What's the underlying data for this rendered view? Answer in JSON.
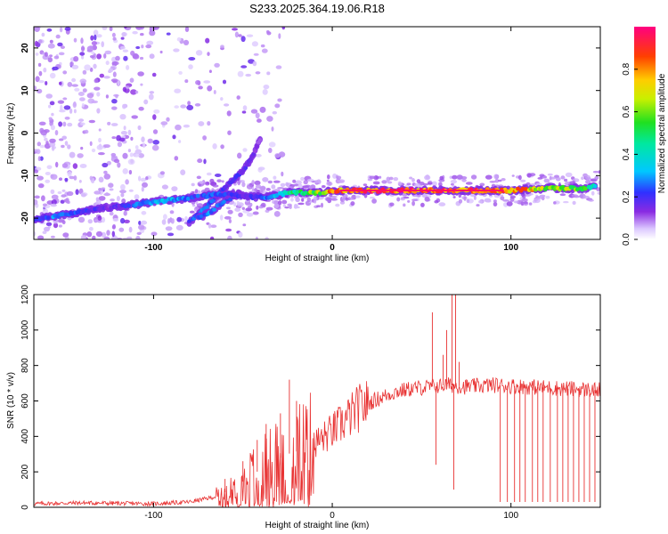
{
  "title": "S233.2025.364.19.06.R18",
  "chart_data": [
    {
      "type": "heatmap",
      "xlabel": "Height of straight line (km)",
      "ylabel": "Frequency (Hz)",
      "xlim": [
        -167,
        150
      ],
      "ylim": [
        -25,
        25
      ],
      "xticks": [
        -100,
        0,
        100
      ],
      "xtick_labels": [
        "-100",
        "0",
        "100"
      ],
      "yticks": [
        20,
        10,
        0,
        -10,
        -20
      ],
      "ytick_labels": [
        "20",
        "10",
        "0",
        "-10",
        "-20"
      ],
      "colorbar": {
        "label": "Normalized spectral amplitude",
        "range": [
          0,
          1
        ],
        "ticks": [
          0.0,
          0.2,
          0.4,
          0.6,
          0.8
        ],
        "tick_labels": [
          "0.0",
          "0.2",
          "0.4",
          "0.6",
          "0.8"
        ]
      },
      "main_trace": {
        "x": [
          -167,
          -155,
          -145,
          -135,
          -125,
          -105,
          -95,
          -85,
          -75,
          -65,
          -55,
          -45,
          -35,
          -25,
          -15,
          -5,
          0,
          20,
          40,
          60,
          80,
          100,
          120,
          140,
          148
        ],
        "y": [
          -20.5,
          -19.5,
          -19,
          -18,
          -17.5,
          -16.5,
          -16,
          -15.5,
          -15,
          -14.5,
          -14.5,
          -15,
          -15,
          -14,
          -14,
          -14,
          -13.5,
          -13.5,
          -13.5,
          -13.5,
          -13.5,
          -13.5,
          -13,
          -13,
          -12.5
        ],
        "amplitude": [
          0.2,
          0.3,
          0.25,
          0.2,
          0.15,
          0.3,
          0.35,
          0.3,
          0.25,
          0.25,
          0.2,
          0.2,
          0.3,
          0.45,
          0.6,
          0.7,
          0.85,
          0.95,
          0.95,
          0.9,
          0.9,
          0.85,
          0.7,
          0.6,
          0.4
        ]
      },
      "branch_trace": {
        "x": [
          -80,
          -72,
          -65,
          -58,
          -50,
          -44,
          -40
        ],
        "y": [
          -21,
          -18,
          -15,
          -12,
          -9,
          -5,
          -1
        ],
        "amplitude": [
          0.25,
          0.3,
          0.25,
          0.2,
          0.2,
          0.15,
          0.1
        ]
      },
      "lower_trace": {
        "x": [
          -75,
          -68,
          -60,
          -52
        ],
        "y": [
          -20,
          -18.5,
          -16,
          -14
        ],
        "amplitude": [
          0.25,
          0.3,
          0.25,
          0.2
        ]
      }
    },
    {
      "type": "line",
      "xlabel": "Height of straight line (km)",
      "ylabel": "SNR (10 * v/v)",
      "xlim": [
        -167,
        150
      ],
      "ylim": [
        0,
        1200
      ],
      "xticks": [
        -100,
        0,
        100
      ],
      "xtick_labels": [
        "-100",
        "0",
        "100"
      ],
      "yticks": [
        0,
        200,
        400,
        600,
        800,
        1000,
        1200
      ],
      "ytick_labels": [
        "0",
        "200",
        "400",
        "600",
        "800",
        "1000",
        "1200"
      ],
      "color": "#e83232",
      "envelope": {
        "x": [
          -167,
          -140,
          -100,
          -80,
          -65,
          -55,
          -45,
          -35,
          -25,
          -15,
          -5,
          5,
          15,
          25,
          35,
          45,
          55,
          65,
          75,
          90,
          110,
          130,
          150
        ],
        "y": [
          20,
          25,
          20,
          30,
          60,
          110,
          180,
          250,
          300,
          330,
          390,
          470,
          560,
          610,
          650,
          670,
          680,
          690,
          680,
          690,
          680,
          670,
          660
        ]
      },
      "spikes": [
        {
          "x": -60,
          "y": 160
        },
        {
          "x": -50,
          "y": 260
        },
        {
          "x": -42,
          "y": 380
        },
        {
          "x": -37,
          "y": 470
        },
        {
          "x": -29,
          "y": 530
        },
        {
          "x": -24,
          "y": 720
        },
        {
          "x": -20,
          "y": 600
        },
        {
          "x": 56,
          "y": 1100
        },
        {
          "x": 58,
          "y": 240
        },
        {
          "x": 62,
          "y": 860
        },
        {
          "x": 64,
          "y": 1000
        },
        {
          "x": 67,
          "y": 1200
        },
        {
          "x": 68,
          "y": 100
        },
        {
          "x": 69,
          "y": 1200
        },
        {
          "x": 71,
          "y": 820
        }
      ],
      "dropouts_x": [
        94,
        98,
        102,
        105,
        108,
        112,
        115,
        118,
        122,
        126,
        129,
        132,
        135,
        138,
        141,
        144,
        147
      ],
      "dropout_y": 30
    }
  ]
}
